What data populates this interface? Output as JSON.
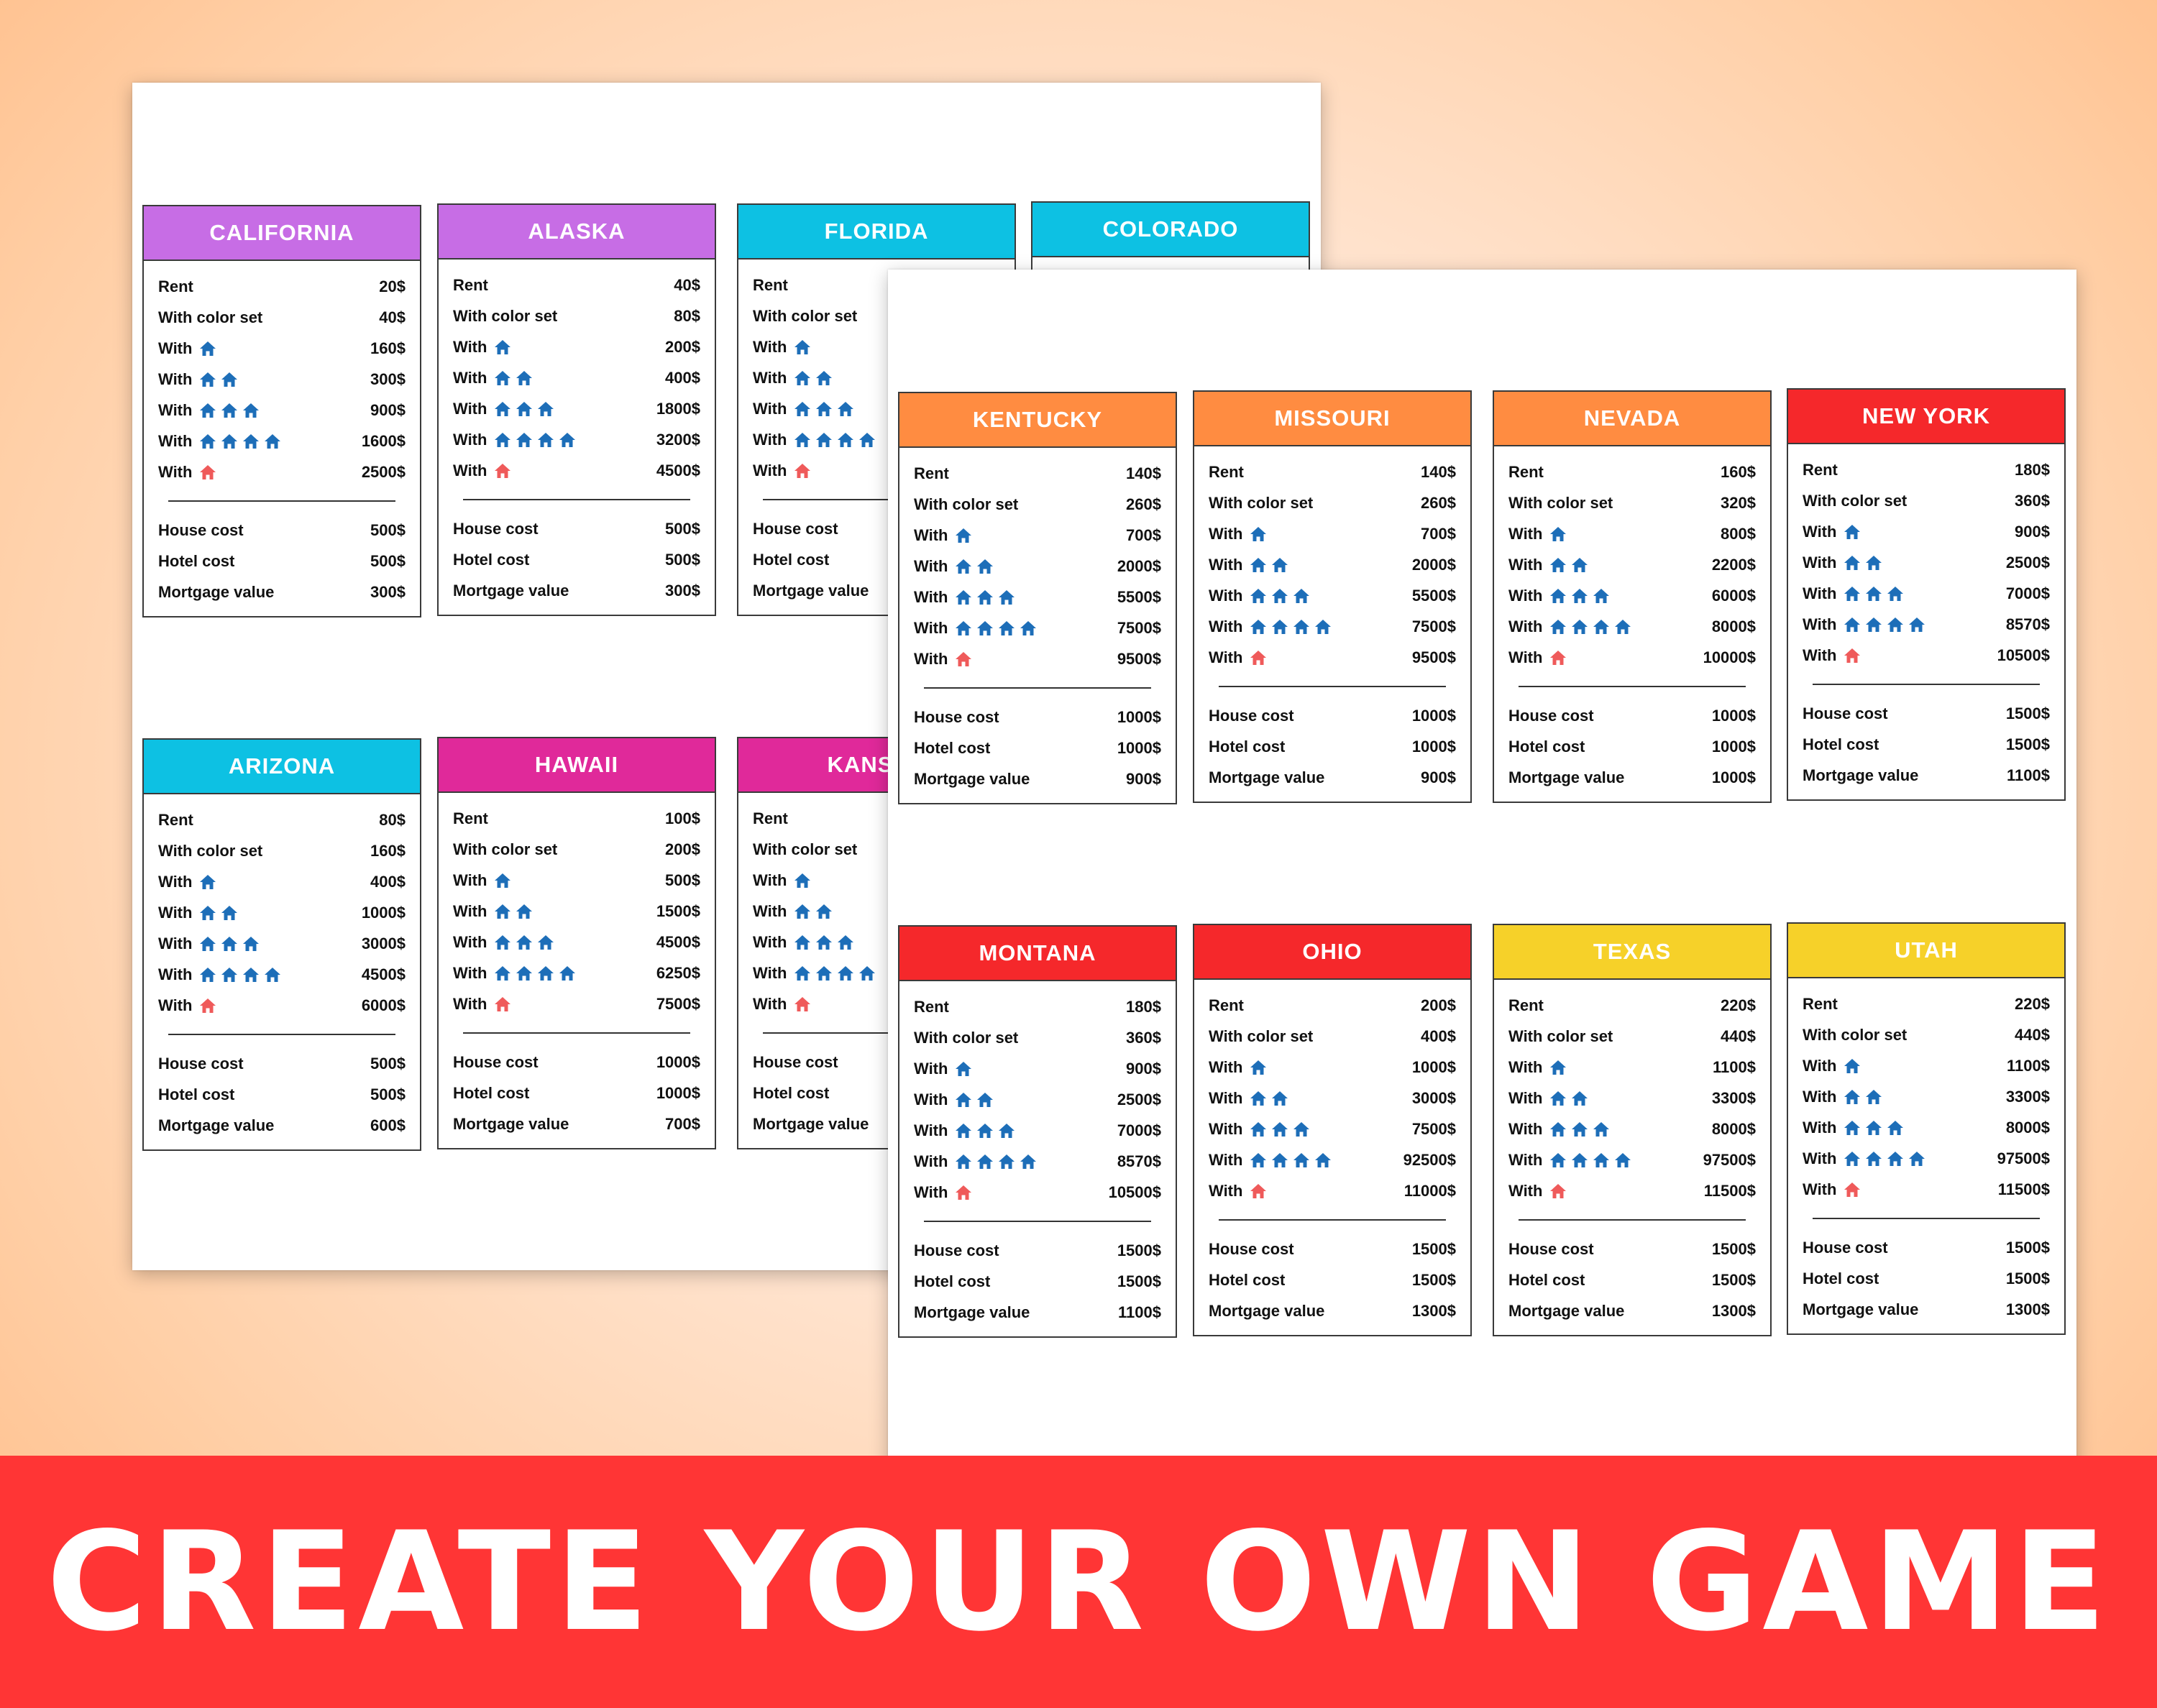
{
  "labels": {
    "rent": "Rent",
    "color_set": "With color set",
    "with": "With",
    "house_cost": "House cost",
    "hotel_cost": "Hotel cost",
    "mortgage": "Mortgage value"
  },
  "colors": {
    "purple": "#c76de5",
    "cyan": "#0dc1e3",
    "magenta": "#e0299a",
    "orange": "#ff8c41",
    "red": "#f5282b",
    "yellow": "#f6d129",
    "house_icon": "#1d6eb8",
    "hotel_icon": "#ef5a5a",
    "banner": "#ff3535"
  },
  "icons": {
    "house": "house-icon",
    "hotel": "hotel-icon"
  },
  "back_sheet": {
    "cards": [
      {
        "name": "CALIFORNIA",
        "color": "#c76de5",
        "values": [
          "20$",
          "40$",
          "160$",
          "300$",
          "900$",
          "1600$",
          "2500$",
          "500$",
          "500$",
          "300$"
        ]
      },
      {
        "name": "ALASKA",
        "color": "#c76de5",
        "values": [
          "40$",
          "80$",
          "200$",
          "400$",
          "1800$",
          "3200$",
          "4500$",
          "500$",
          "500$",
          "300$"
        ]
      },
      {
        "name": "FLORIDA",
        "color": "#0dc1e3",
        "values": [
          "",
          "",
          "",
          "",
          "",
          "",
          "",
          "",
          "",
          ""
        ]
      },
      {
        "name": "COLORADO",
        "color": "#0dc1e3",
        "values": [
          "",
          "",
          "",
          "",
          "",
          "",
          "",
          "",
          "",
          ""
        ]
      },
      {
        "name": "ARIZONA",
        "color": "#0dc1e3",
        "values": [
          "80$",
          "160$",
          "400$",
          "1000$",
          "3000$",
          "4500$",
          "6000$",
          "500$",
          "500$",
          "600$"
        ]
      },
      {
        "name": "HAWAII",
        "color": "#e0299a",
        "values": [
          "100$",
          "200$",
          "500$",
          "1500$",
          "4500$",
          "6250$",
          "7500$",
          "1000$",
          "1000$",
          "700$"
        ]
      },
      {
        "name": "KANSAS",
        "color": "#e0299a",
        "values": [
          "",
          "",
          "",
          "",
          "",
          "",
          "",
          "",
          "",
          ""
        ]
      }
    ]
  },
  "front_sheet": {
    "cards": [
      {
        "name": "KENTUCKY",
        "color": "#ff8c41",
        "values": [
          "140$",
          "260$",
          "700$",
          "2000$",
          "5500$",
          "7500$",
          "9500$",
          "1000$",
          "1000$",
          "900$"
        ]
      },
      {
        "name": "MISSOURI",
        "color": "#ff8c41",
        "values": [
          "140$",
          "260$",
          "700$",
          "2000$",
          "5500$",
          "7500$",
          "9500$",
          "1000$",
          "1000$",
          "900$"
        ]
      },
      {
        "name": "NEVADA",
        "color": "#ff8c41",
        "values": [
          "160$",
          "320$",
          "800$",
          "2200$",
          "6000$",
          "8000$",
          "10000$",
          "1000$",
          "1000$",
          "1000$"
        ]
      },
      {
        "name": "NEW YORK",
        "color": "#f5282b",
        "values": [
          "180$",
          "360$",
          "900$",
          "2500$",
          "7000$",
          "8570$",
          "10500$",
          "1500$",
          "1500$",
          "1100$"
        ]
      },
      {
        "name": "MONTANA",
        "color": "#f5282b",
        "values": [
          "180$",
          "360$",
          "900$",
          "2500$",
          "7000$",
          "8570$",
          "10500$",
          "1500$",
          "1500$",
          "1100$"
        ]
      },
      {
        "name": "OHIO",
        "color": "#f5282b",
        "values": [
          "200$",
          "400$",
          "1000$",
          "3000$",
          "7500$",
          "92500$",
          "11000$",
          "1500$",
          "1500$",
          "1300$"
        ]
      },
      {
        "name": "TEXAS",
        "color": "#f6d129",
        "values": [
          "220$",
          "440$",
          "1100$",
          "3300$",
          "8000$",
          "97500$",
          "11500$",
          "1500$",
          "1500$",
          "1300$"
        ]
      },
      {
        "name": "UTAH",
        "color": "#f6d129",
        "values": [
          "220$",
          "440$",
          "1100$",
          "3300$",
          "8000$",
          "97500$",
          "11500$",
          "1500$",
          "1500$",
          "1300$"
        ]
      }
    ]
  },
  "banner": {
    "text": "CREATE YOUR OWN GAME"
  }
}
